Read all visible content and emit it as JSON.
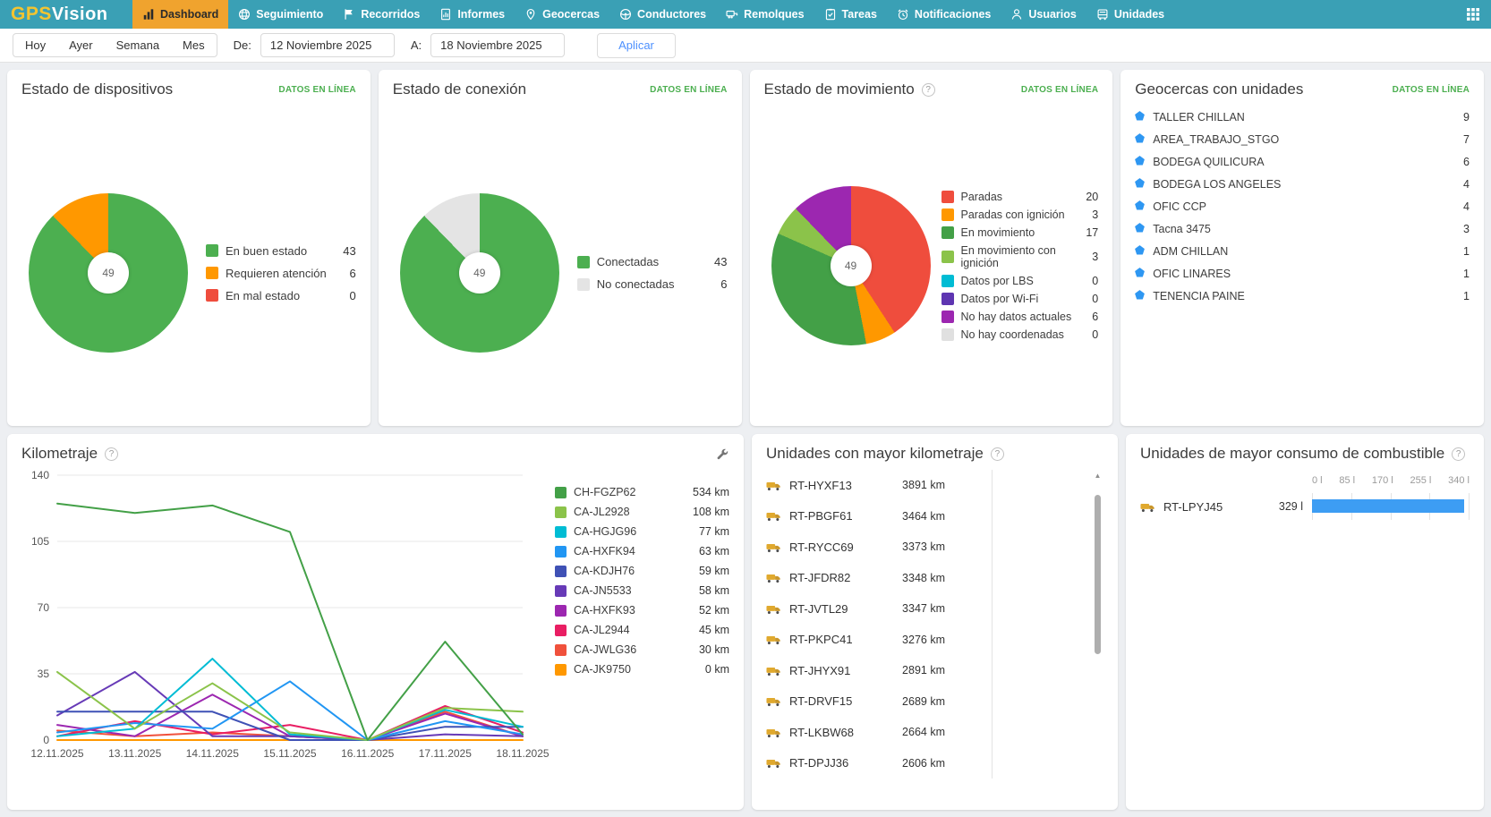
{
  "nav": {
    "logo": {
      "gps": "GPS",
      "vision": "Vision"
    },
    "items": [
      {
        "label": "Dashboard",
        "icon": "bar-chart-icon",
        "active": true
      },
      {
        "label": "Seguimiento",
        "icon": "globe-icon",
        "active": false
      },
      {
        "label": "Recorridos",
        "icon": "route-flag-icon",
        "active": false
      },
      {
        "label": "Informes",
        "icon": "report-icon",
        "active": false
      },
      {
        "label": "Geocercas",
        "icon": "geofence-icon",
        "active": false
      },
      {
        "label": "Conductores",
        "icon": "steering-wheel-icon",
        "active": false
      },
      {
        "label": "Remolques",
        "icon": "trailer-icon",
        "active": false
      },
      {
        "label": "Tareas",
        "icon": "tasks-icon",
        "active": false
      },
      {
        "label": "Notificaciones",
        "icon": "alarm-icon",
        "active": false
      },
      {
        "label": "Usuarios",
        "icon": "user-icon",
        "active": false
      },
      {
        "label": "Unidades",
        "icon": "truck-icon",
        "active": false
      }
    ]
  },
  "filterbar": {
    "quick_ranges": [
      "Hoy",
      "Ayer",
      "Semana",
      "Mes"
    ],
    "from_label": "De:",
    "from_value": "12 Noviembre 2025",
    "to_label": "A:",
    "to_value": "18 Noviembre 2025",
    "apply_label": "Aplicar"
  },
  "badges": {
    "online": "DATOS EN LÍNEA"
  },
  "cards": {
    "devices": {
      "title": "Estado de dispositivos"
    },
    "connection": {
      "title": "Estado de conexión"
    },
    "movement": {
      "title": "Estado de movimiento"
    },
    "geofences": {
      "title": "Geocercas con unidades",
      "items": [
        {
          "name": "TALLER CHILLAN",
          "count": 9
        },
        {
          "name": "AREA_TRABAJO_STGO",
          "count": 7
        },
        {
          "name": "BODEGA QUILICURA",
          "count": 6
        },
        {
          "name": "BODEGA LOS ANGELES",
          "count": 4
        },
        {
          "name": "OFIC CCP",
          "count": 4
        },
        {
          "name": "Tacna 3475",
          "count": 3
        },
        {
          "name": "ADM CHILLAN",
          "count": 1
        },
        {
          "name": "OFIC LINARES",
          "count": 1
        },
        {
          "name": "TENENCIA PAINE",
          "count": 1
        }
      ]
    },
    "mileage": {
      "title": "Kilometraje"
    },
    "top_mileage": {
      "title": "Unidades con mayor kilometraje"
    },
    "fuel": {
      "title": "Unidades de mayor consumo de combustible"
    }
  },
  "chart_data": [
    {
      "id": "devices",
      "type": "pie",
      "title": "Estado de dispositivos",
      "total_label": 49,
      "labels": [
        "En buen estado",
        "Requieren atención",
        "En mal estado"
      ],
      "values": [
        43,
        6,
        0
      ],
      "colors": [
        "#4caf50",
        "#ff9800",
        "#ef4d3d"
      ],
      "legend_position": "right"
    },
    {
      "id": "connection",
      "type": "pie",
      "title": "Estado de conexión",
      "total_label": 49,
      "labels": [
        "Conectadas",
        "No conectadas"
      ],
      "values": [
        43,
        6
      ],
      "colors": [
        "#4caf50",
        "#e4e4e4"
      ],
      "legend_position": "right"
    },
    {
      "id": "movement",
      "type": "pie",
      "title": "Estado de movimiento",
      "total_label": 49,
      "labels": [
        "Paradas",
        "Paradas con ignición",
        "En movimiento",
        "En movimiento con ignición",
        "Datos por LBS",
        "Datos por Wi-Fi",
        "No hay datos actuales",
        "No hay coordenadas"
      ],
      "values": [
        20,
        3,
        17,
        3,
        0,
        0,
        6,
        0
      ],
      "colors": [
        "#ef4d3d",
        "#ff9800",
        "#43a047",
        "#8bc34a",
        "#00bcd4",
        "#5e35b1",
        "#9c27b0",
        "#e0e0e0"
      ],
      "legend_position": "right"
    },
    {
      "id": "mileage",
      "type": "line",
      "title": "Kilometraje",
      "x": [
        "12.11.2025",
        "13.11.2025",
        "14.11.2025",
        "15.11.2025",
        "16.11.2025",
        "17.11.2025",
        "18.11.2025"
      ],
      "ylim": [
        0,
        140
      ],
      "yticks": [
        0,
        35,
        70,
        105,
        140
      ],
      "grid": true,
      "unit": "km",
      "series": [
        {
          "name": "CH-FGZP62",
          "color": "#43a047",
          "total": 534,
          "values": [
            125,
            120,
            124,
            110,
            0,
            52,
            3
          ]
        },
        {
          "name": "CA-JL2928",
          "color": "#8bc34a",
          "total": 108,
          "values": [
            36,
            6,
            30,
            4,
            0,
            17,
            15
          ]
        },
        {
          "name": "CA-HGJG96",
          "color": "#00bcd4",
          "total": 77,
          "values": [
            2,
            6,
            43,
            3,
            0,
            16,
            7
          ]
        },
        {
          "name": "CA-HXFK94",
          "color": "#2196f3",
          "total": 63,
          "values": [
            4,
            9,
            6,
            31,
            0,
            10,
            3
          ]
        },
        {
          "name": "CA-KDJH76",
          "color": "#3f51b5",
          "total": 59,
          "values": [
            15,
            15,
            15,
            0,
            0,
            7,
            7
          ]
        },
        {
          "name": "CA-JN5533",
          "color": "#673ab7",
          "total": 58,
          "values": [
            13,
            36,
            2,
            2,
            0,
            3,
            2
          ]
        },
        {
          "name": "CA-HXFK93",
          "color": "#9c27b0",
          "total": 52,
          "values": [
            8,
            2,
            24,
            2,
            0,
            14,
            2
          ]
        },
        {
          "name": "CA-JL2944",
          "color": "#e91e63",
          "total": 45,
          "values": [
            2,
            10,
            3,
            8,
            0,
            18,
            4
          ]
        },
        {
          "name": "CA-JWLG36",
          "color": "#f0513c",
          "total": 30,
          "values": [
            5,
            2,
            4,
            2,
            0,
            15,
            2
          ]
        },
        {
          "name": "CA-JK9750",
          "color": "#ff9800",
          "total": 0,
          "values": [
            0,
            0,
            0,
            0,
            0,
            0,
            0
          ]
        }
      ]
    },
    {
      "id": "top_mileage",
      "type": "bar",
      "orientation": "horizontal",
      "unit": "km",
      "title": "Unidades con mayor kilometraje",
      "xmax": 3891,
      "categories": [
        "RT-HYXF13",
        "RT-PBGF61",
        "RT-RYCC69",
        "RT-JFDR82",
        "RT-JVTL29",
        "RT-PKPC41",
        "RT-JHYX91",
        "RT-DRVF15",
        "RT-LKBW68",
        "RT-DPJJ36"
      ],
      "values": [
        3891,
        3464,
        3373,
        3348,
        3347,
        3276,
        2891,
        2689,
        2664,
        2606
      ],
      "bar_color": "#3d9df3"
    },
    {
      "id": "fuel",
      "type": "bar",
      "orientation": "horizontal",
      "unit": "l",
      "title": "Unidades de mayor consumo de combustible",
      "xlim": [
        0,
        340
      ],
      "xticks": [
        "0 l",
        "85 l",
        "170 l",
        "255 l",
        "340 l"
      ],
      "categories": [
        "RT-LPYJ45"
      ],
      "values": [
        329
      ],
      "bar_color": "#3d9df3"
    }
  ]
}
